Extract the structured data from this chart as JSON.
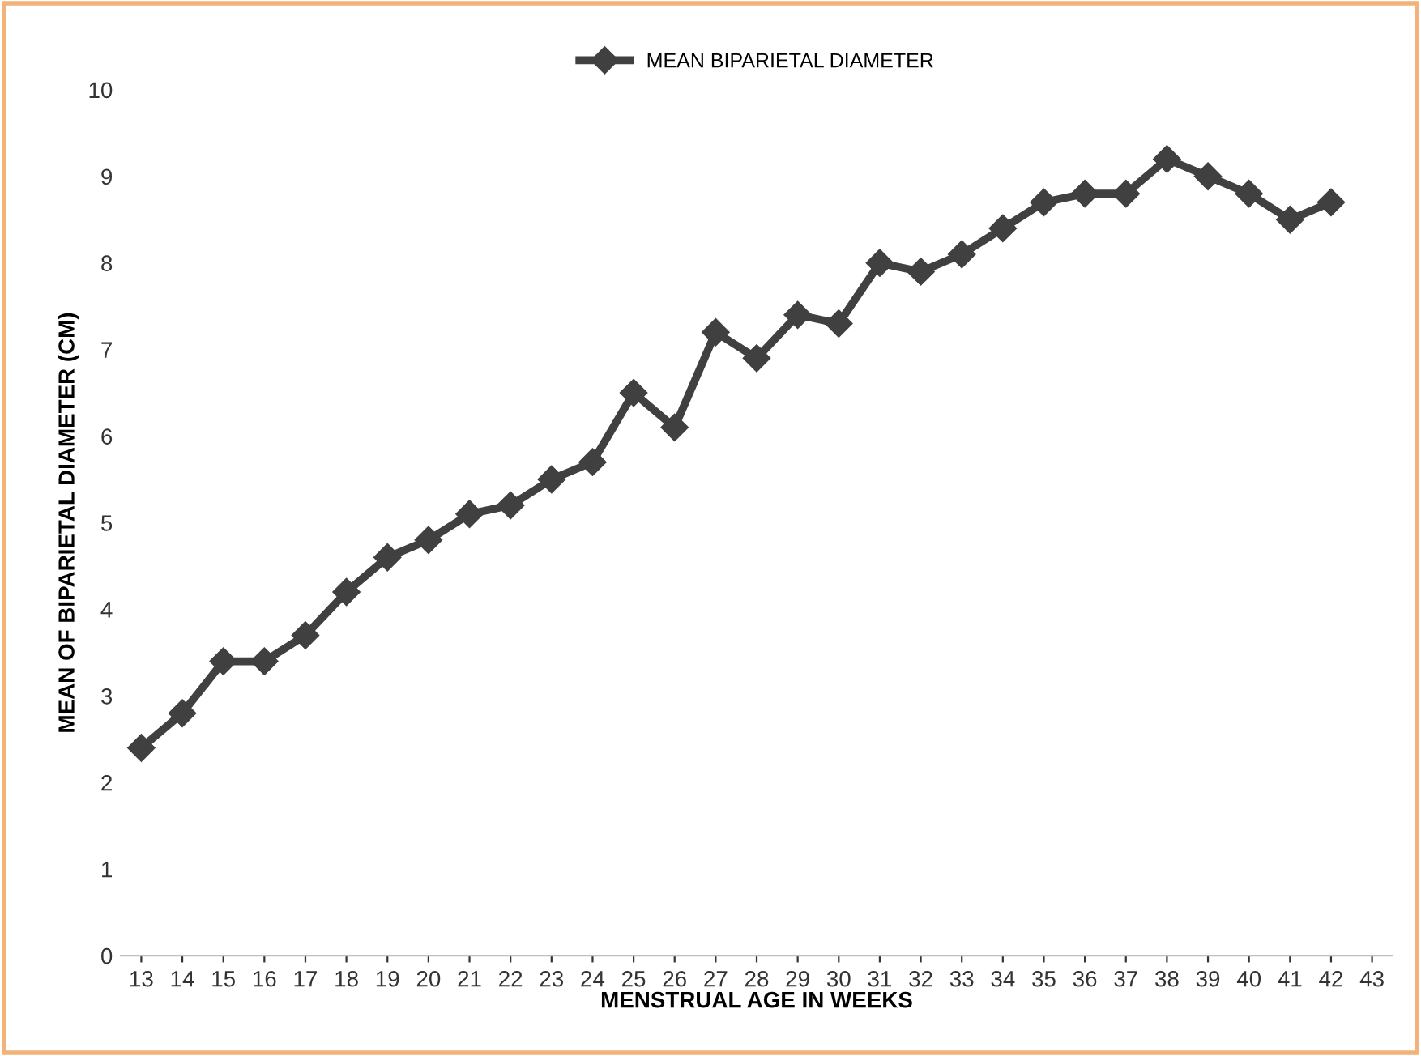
{
  "chart_data": {
    "type": "line",
    "xlabel": "MENSTRUAL AGE IN WEEKS",
    "ylabel": "MEAN OF BIPARIETAL DIAMETER (CM)",
    "categories": [
      "13",
      "14",
      "15",
      "16",
      "17",
      "18",
      "19",
      "20",
      "21",
      "22",
      "23",
      "24",
      "25",
      "26",
      "27",
      "28",
      "29",
      "30",
      "31",
      "32",
      "33",
      "34",
      "35",
      "36",
      "37",
      "38",
      "39",
      "40",
      "41",
      "42",
      "43"
    ],
    "series": [
      {
        "name": "MEAN BIPARIETAL DIAMETER",
        "color": "#404040",
        "values": [
          2.4,
          2.8,
          3.4,
          3.4,
          3.7,
          4.2,
          4.6,
          4.8,
          5.1,
          5.2,
          5.5,
          5.7,
          6.5,
          6.1,
          7.2,
          6.9,
          7.4,
          7.3,
          8.0,
          7.9,
          8.1,
          8.4,
          8.7,
          8.8,
          8.8,
          9.2,
          9.0,
          8.8,
          8.5,
          8.7,
          null
        ]
      }
    ],
    "ylim": [
      0,
      10
    ],
    "yticks": [
      0,
      1,
      2,
      3,
      4,
      5,
      6,
      7,
      8,
      9,
      10
    ],
    "grid": false,
    "legend": "top",
    "marker": "diamond",
    "line_style": "solid"
  }
}
